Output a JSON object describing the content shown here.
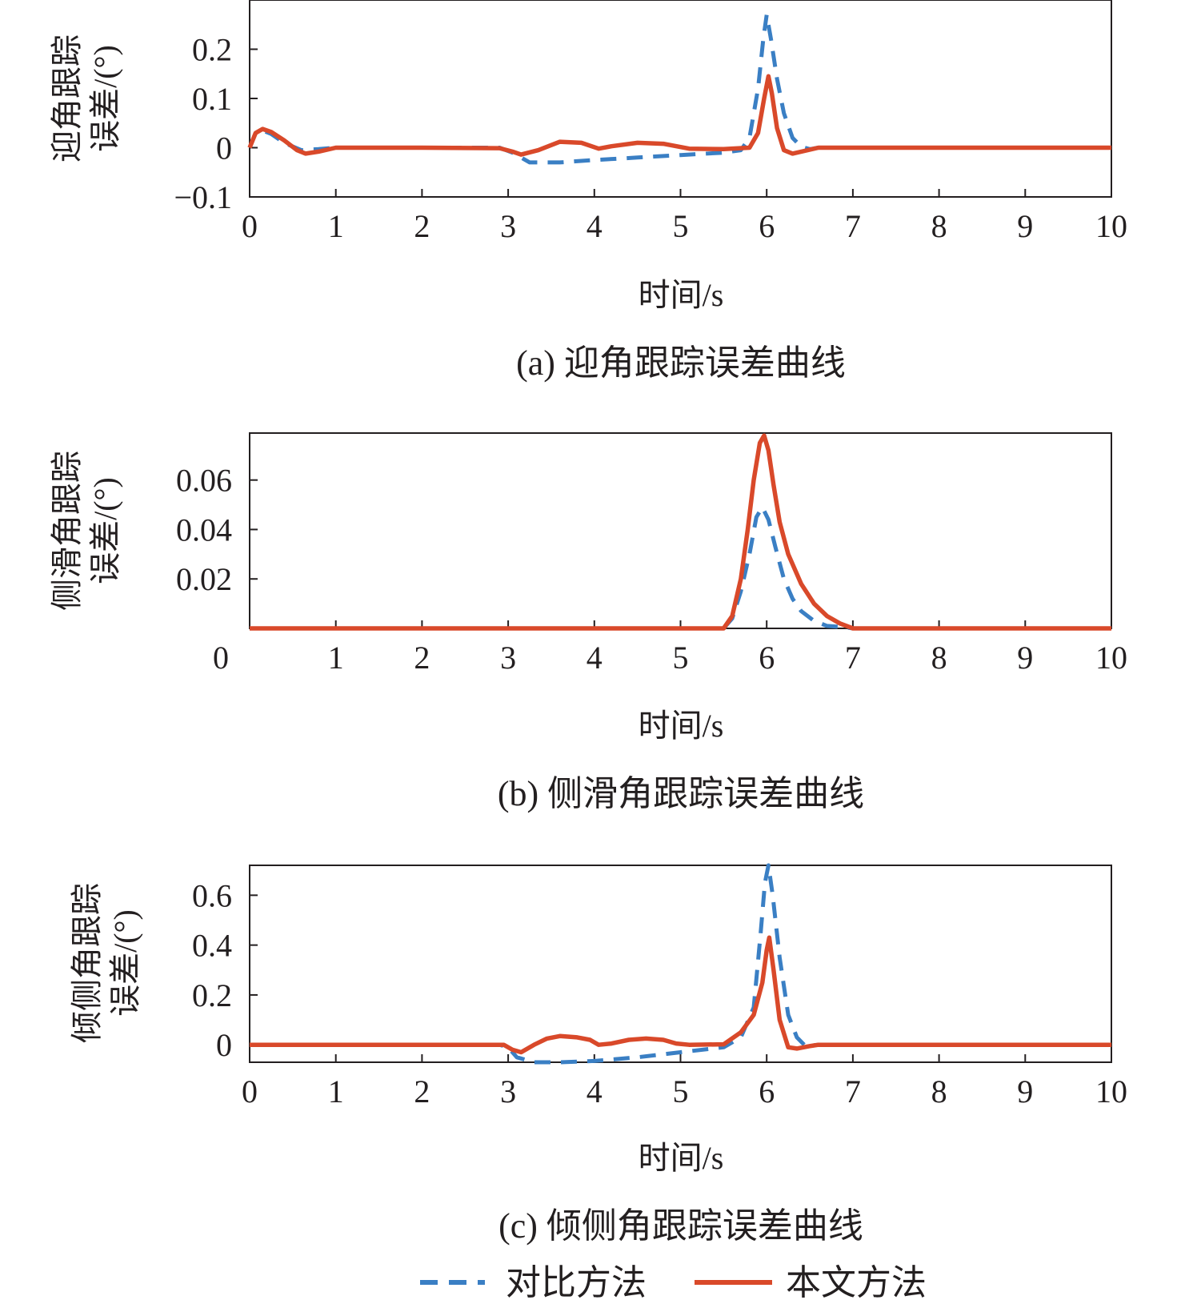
{
  "chart_data": [
    {
      "type": "line",
      "caption": "(a) 迎角跟踪误差曲线",
      "ylabel_line1": "迎角跟踪",
      "ylabel_line2": "误差/(°)",
      "xlabel": "时间/s",
      "xlim": [
        0,
        10
      ],
      "ylim": [
        -0.1,
        0.3
      ],
      "xticks": [
        0,
        1,
        2,
        3,
        4,
        5,
        6,
        7,
        8,
        9,
        10
      ],
      "xtick_labels": [
        "0",
        "1",
        "2",
        "3",
        "4",
        "5",
        "6",
        "7",
        "8",
        "9",
        "10"
      ],
      "yticks": [
        -0.1,
        0,
        0.1,
        0.2
      ],
      "ytick_labels": [
        "−0.1",
        "0",
        "0.1",
        "0.2"
      ],
      "series": [
        {
          "name": "对比方法",
          "x": [
            0,
            0.07,
            0.15,
            0.25,
            0.4,
            0.6,
            0.8,
            1,
            2,
            2.9,
            3.05,
            3.25,
            3.6,
            4,
            4.5,
            5,
            5.5,
            5.7,
            5.8,
            5.9,
            5.96,
            6.0,
            6.05,
            6.12,
            6.2,
            6.3,
            6.4,
            6.5,
            6.6,
            7,
            8,
            9,
            10
          ],
          "y": [
            0,
            0.03,
            0.035,
            0.028,
            0.01,
            -0.005,
            -0.003,
            0,
            0,
            0,
            -0.01,
            -0.03,
            -0.03,
            -0.025,
            -0.02,
            -0.015,
            -0.01,
            -0.005,
            0.02,
            0.12,
            0.22,
            0.27,
            0.22,
            0.14,
            0.07,
            0.02,
            0.002,
            -0.003,
            0,
            0,
            0,
            0,
            0
          ]
        },
        {
          "name": "本文方法",
          "x": [
            0,
            0.07,
            0.15,
            0.25,
            0.4,
            0.55,
            0.65,
            0.8,
            1,
            2,
            2.9,
            3.05,
            3.15,
            3.35,
            3.6,
            3.85,
            4.05,
            4.2,
            4.5,
            4.8,
            5.1,
            5.5,
            5.8,
            5.9,
            5.97,
            6.02,
            6.06,
            6.12,
            6.2,
            6.3,
            6.5,
            6.6,
            7,
            8,
            9,
            10
          ],
          "y": [
            0,
            0.03,
            0.038,
            0.032,
            0.015,
            -0.005,
            -0.012,
            -0.008,
            0,
            0,
            -0.001,
            -0.008,
            -0.014,
            -0.005,
            0.012,
            0.01,
            -0.002,
            0.003,
            0.01,
            0.008,
            -0.002,
            -0.003,
            0,
            0.03,
            0.1,
            0.145,
            0.11,
            0.04,
            -0.005,
            -0.012,
            -0.004,
            0,
            0,
            0,
            0,
            0
          ]
        }
      ]
    },
    {
      "type": "line",
      "caption": "(b) 侧滑角跟踪误差曲线",
      "ylabel_line1": "侧滑角跟踪",
      "ylabel_line2": "误差/(°)",
      "xlabel": "时间/s",
      "xlim": [
        0,
        10
      ],
      "ylim": [
        0,
        0.079
      ],
      "xticks": [
        0,
        1,
        2,
        3,
        4,
        5,
        6,
        7,
        8,
        9,
        10
      ],
      "xtick_labels": [
        "0",
        "1",
        "2",
        "3",
        "4",
        "5",
        "6",
        "7",
        "8",
        "9",
        "10"
      ],
      "yticks": [
        0.02,
        0.04,
        0.06
      ],
      "ytick_labels": [
        "0.02",
        "0.04",
        "0.06"
      ],
      "series": [
        {
          "name": "对比方法",
          "x": [
            0,
            5.5,
            5.6,
            5.7,
            5.8,
            5.88,
            5.95,
            6.02,
            6.1,
            6.2,
            6.3,
            6.4,
            6.55,
            6.7,
            6.9,
            7.0,
            10
          ],
          "y": [
            0,
            0,
            0.004,
            0.015,
            0.03,
            0.045,
            0.049,
            0.044,
            0.033,
            0.02,
            0.012,
            0.007,
            0.003,
            0.001,
            0.0005,
            0,
            0
          ]
        },
        {
          "name": "本文方法",
          "x": [
            0,
            5.5,
            5.6,
            5.7,
            5.78,
            5.85,
            5.92,
            5.97,
            6.02,
            6.08,
            6.15,
            6.25,
            6.4,
            6.55,
            6.7,
            6.85,
            7.0,
            10
          ],
          "y": [
            0,
            0,
            0.005,
            0.02,
            0.04,
            0.06,
            0.075,
            0.078,
            0.072,
            0.058,
            0.043,
            0.03,
            0.018,
            0.01,
            0.005,
            0.002,
            0,
            0
          ]
        }
      ]
    },
    {
      "type": "line",
      "caption": "(c) 倾侧角跟踪误差曲线",
      "ylabel_line1": "倾侧角跟踪",
      "ylabel_line2": "误差/(°)",
      "xlabel": "时间/s",
      "xlim": [
        0,
        10
      ],
      "ylim": [
        -0.07,
        0.72
      ],
      "xticks": [
        0,
        1,
        2,
        3,
        4,
        5,
        6,
        7,
        8,
        9,
        10
      ],
      "xtick_labels": [
        "0",
        "1",
        "2",
        "3",
        "4",
        "5",
        "6",
        "7",
        "8",
        "9",
        "10"
      ],
      "yticks": [
        0,
        0.2,
        0.4,
        0.6
      ],
      "ytick_labels": [
        "0",
        "0.2",
        "0.4",
        "0.6"
      ],
      "series": [
        {
          "name": "对比方法",
          "x": [
            0,
            2.9,
            3.0,
            3.1,
            3.3,
            3.6,
            4.0,
            4.5,
            5.0,
            5.5,
            5.7,
            5.85,
            5.93,
            5.98,
            6.02,
            6.07,
            6.15,
            6.25,
            6.35,
            6.45,
            6.6,
            7,
            8,
            9,
            10
          ],
          "y": [
            0,
            0,
            -0.01,
            -0.05,
            -0.07,
            -0.07,
            -0.065,
            -0.05,
            -0.03,
            -0.01,
            0.03,
            0.15,
            0.45,
            0.65,
            0.72,
            0.6,
            0.35,
            0.12,
            0.03,
            -0.005,
            0,
            0,
            0,
            0,
            0
          ]
        },
        {
          "name": "本文方法",
          "x": [
            0,
            2.95,
            3.05,
            3.15,
            3.3,
            3.45,
            3.6,
            3.8,
            3.95,
            4.05,
            4.2,
            4.4,
            4.6,
            4.8,
            4.95,
            5.1,
            5.5,
            5.7,
            5.85,
            5.95,
            6.0,
            6.03,
            6.08,
            6.15,
            6.25,
            6.35,
            6.5,
            6.6,
            7,
            8,
            9,
            10
          ],
          "y": [
            0,
            0,
            -0.02,
            -0.03,
            0,
            0.025,
            0.035,
            0.03,
            0.02,
            0,
            0.005,
            0.02,
            0.025,
            0.02,
            0.005,
            0,
            0.002,
            0.05,
            0.12,
            0.25,
            0.38,
            0.43,
            0.3,
            0.1,
            -0.01,
            -0.015,
            -0.005,
            0,
            0,
            0,
            0,
            0
          ]
        }
      ]
    }
  ],
  "legend": {
    "items": [
      {
        "label": "对比方法",
        "style": "dashed",
        "color": "#3a7fc4"
      },
      {
        "label": "本文方法",
        "style": "solid",
        "color": "#d9492a"
      }
    ]
  },
  "colors": {
    "compare": "#3a7fc4",
    "proposed": "#d9492a",
    "axis": "#231f20"
  }
}
